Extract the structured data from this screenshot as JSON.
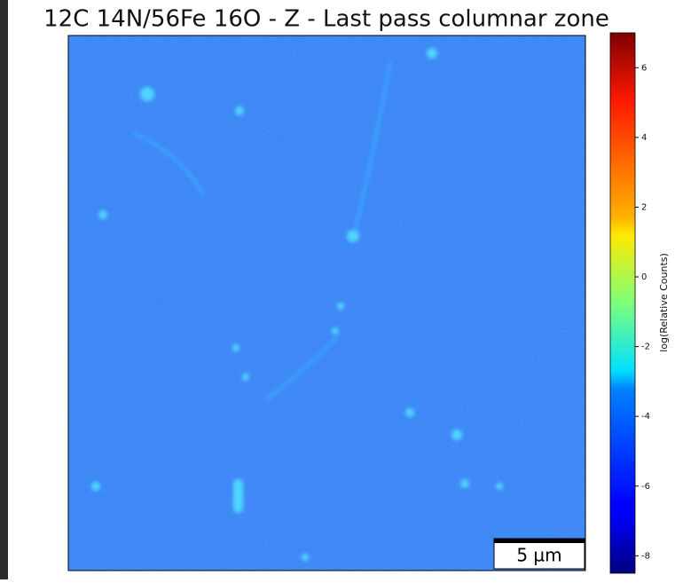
{
  "chart_data": {
    "type": "image",
    "title": "12C 14N/56Fe 16O - Z - Last pass columnar zone",
    "colorbar_label": "log(Relative Counts)",
    "colormap": "jet",
    "clim": [
      -8.5,
      7
    ],
    "cticks": [
      -8,
      -6,
      -4,
      -2,
      0,
      2,
      4,
      6
    ],
    "scale_bar_label": "5 µm"
  }
}
